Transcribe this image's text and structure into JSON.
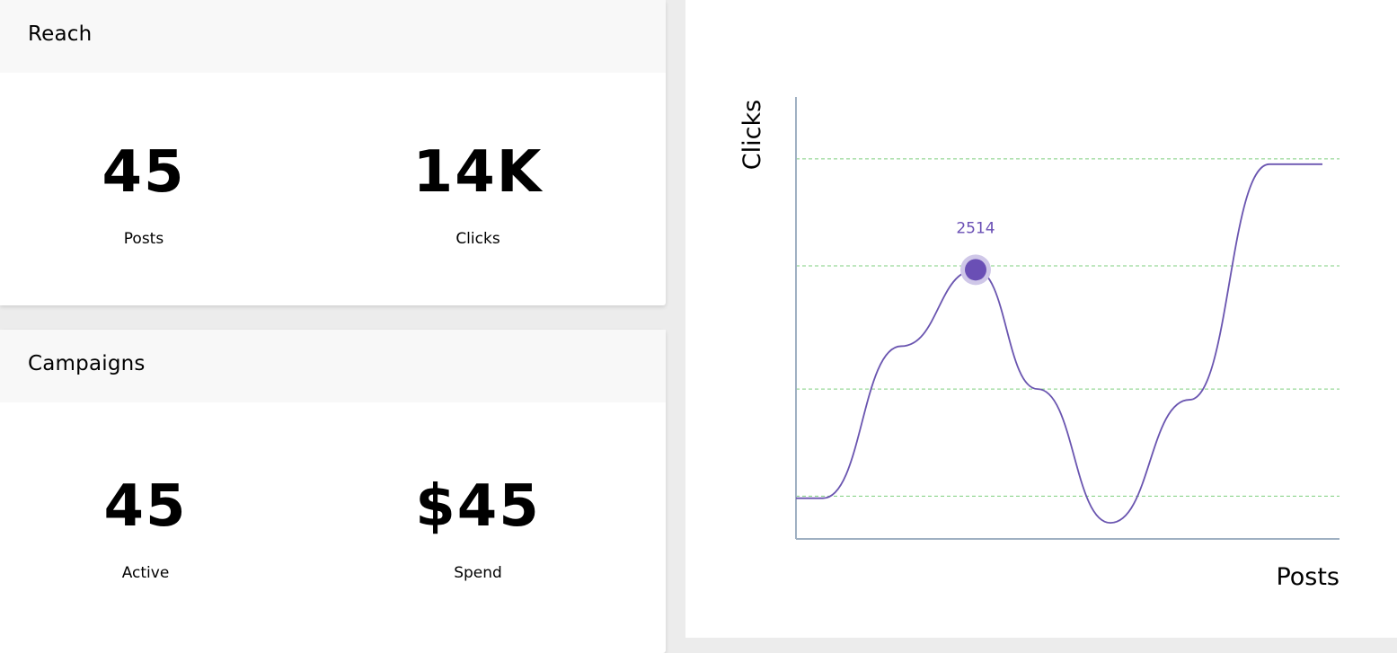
{
  "reach": {
    "title": "Reach",
    "stats": [
      {
        "value": "45",
        "label": "Posts"
      },
      {
        "value": "14K",
        "label": "Clicks"
      }
    ]
  },
  "campaigns": {
    "title": "Campaigns",
    "stats": [
      {
        "value": "45",
        "label": "Active"
      },
      {
        "value": "$45",
        "label": "Spend"
      }
    ]
  },
  "colors": {
    "line": "#6a55b0",
    "marker": "#6a4fb5",
    "marker_halo": "#cfc7e8",
    "grid": "#7fcf7f",
    "axis": "#9fb0c2"
  },
  "chart_data": {
    "type": "line",
    "xlabel": "Posts",
    "ylabel": "Clicks",
    "grid": "horizontal dashed",
    "highlight": {
      "label": "2514",
      "index": 3
    },
    "ylim": [
      0,
      4200
    ],
    "series": [
      {
        "values": [
          380,
          380,
          1800,
          2514,
          1400,
          150,
          1300,
          3500,
          3500
        ]
      }
    ]
  }
}
